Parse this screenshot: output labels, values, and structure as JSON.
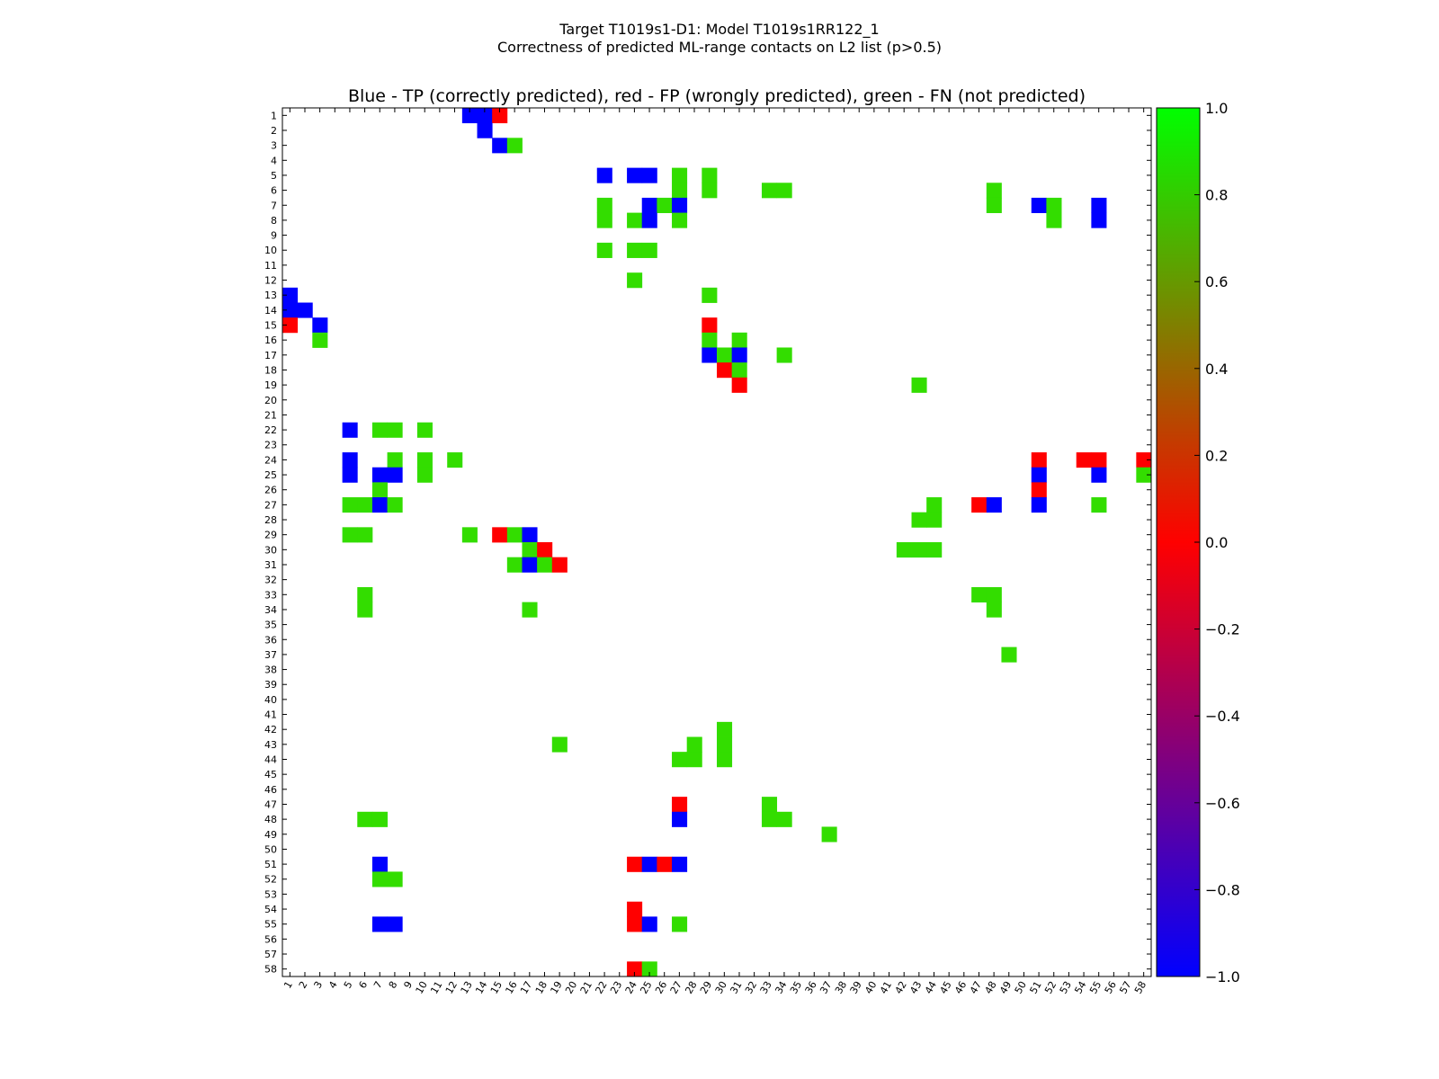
{
  "figure": {
    "suptitle_line1": "Target T1019s1-D1: Model T1019s1RR122_1",
    "suptitle_line2": "Correctness of predicted ML-range contacts on L2 list (p>0.5)"
  },
  "chart_data": {
    "type": "heatmap",
    "title": "Blue - TP (correctly predicted), red - FP (wrongly predicted), green - FN (not predicted)",
    "xlabel": "",
    "ylabel": "",
    "n": 58,
    "x_ticks": [
      1,
      2,
      3,
      4,
      5,
      6,
      7,
      8,
      9,
      10,
      11,
      12,
      13,
      14,
      15,
      16,
      17,
      18,
      19,
      20,
      21,
      22,
      23,
      24,
      25,
      26,
      27,
      28,
      29,
      30,
      31,
      32,
      33,
      34,
      35,
      36,
      37,
      38,
      39,
      40,
      41,
      42,
      43,
      44,
      45,
      46,
      47,
      48,
      49,
      50,
      51,
      52,
      53,
      54,
      55,
      56,
      57,
      58
    ],
    "y_ticks": [
      1,
      2,
      3,
      4,
      5,
      6,
      7,
      8,
      9,
      10,
      11,
      12,
      13,
      14,
      15,
      16,
      17,
      18,
      19,
      20,
      21,
      22,
      23,
      24,
      25,
      26,
      27,
      28,
      29,
      30,
      31,
      32,
      33,
      34,
      35,
      36,
      37,
      38,
      39,
      40,
      41,
      42,
      43,
      44,
      45,
      46,
      47,
      48,
      49,
      50,
      51,
      52,
      53,
      54,
      55,
      56,
      57,
      58
    ],
    "value_meaning": {
      "-1": "TP (blue)",
      "0": "FP (red)",
      "0.8": "FN (green)"
    },
    "colors": {
      "tp": "#0000ff",
      "fp": "#ff0000",
      "fn": "#33dd00"
    },
    "colorbar": {
      "range": [
        -1.0,
        1.0
      ],
      "stops": [
        "#0000ff",
        "#ff0000",
        "#00ff00"
      ],
      "ticks": [
        "1.0",
        "0.8",
        "0.6",
        "0.4",
        "0.2",
        "0.0",
        "−0.2",
        "−0.4",
        "−0.6",
        "−0.8",
        "−1.0"
      ]
    },
    "cells": [
      {
        "row": 1,
        "col": 13,
        "value": -1
      },
      {
        "row": 1,
        "col": 14,
        "value": -1
      },
      {
        "row": 1,
        "col": 15,
        "value": 0
      },
      {
        "row": 2,
        "col": 14,
        "value": -1
      },
      {
        "row": 3,
        "col": 15,
        "value": -1
      },
      {
        "row": 3,
        "col": 16,
        "value": 0.8
      },
      {
        "row": 5,
        "col": 22,
        "value": -1
      },
      {
        "row": 5,
        "col": 24,
        "value": -1
      },
      {
        "row": 5,
        "col": 25,
        "value": -1
      },
      {
        "row": 5,
        "col": 27,
        "value": 0.8
      },
      {
        "row": 5,
        "col": 29,
        "value": 0.8
      },
      {
        "row": 6,
        "col": 27,
        "value": 0.8
      },
      {
        "row": 6,
        "col": 29,
        "value": 0.8
      },
      {
        "row": 6,
        "col": 33,
        "value": 0.8
      },
      {
        "row": 6,
        "col": 34,
        "value": 0.8
      },
      {
        "row": 6,
        "col": 48,
        "value": 0.8
      },
      {
        "row": 7,
        "col": 22,
        "value": 0.8
      },
      {
        "row": 7,
        "col": 25,
        "value": -1
      },
      {
        "row": 7,
        "col": 26,
        "value": 0.8
      },
      {
        "row": 7,
        "col": 27,
        "value": -1
      },
      {
        "row": 7,
        "col": 48,
        "value": 0.8
      },
      {
        "row": 7,
        "col": 51,
        "value": -1
      },
      {
        "row": 7,
        "col": 52,
        "value": 0.8
      },
      {
        "row": 7,
        "col": 55,
        "value": -1
      },
      {
        "row": 8,
        "col": 22,
        "value": 0.8
      },
      {
        "row": 8,
        "col": 24,
        "value": 0.8
      },
      {
        "row": 8,
        "col": 25,
        "value": -1
      },
      {
        "row": 8,
        "col": 27,
        "value": 0.8
      },
      {
        "row": 8,
        "col": 52,
        "value": 0.8
      },
      {
        "row": 8,
        "col": 55,
        "value": -1
      },
      {
        "row": 10,
        "col": 22,
        "value": 0.8
      },
      {
        "row": 10,
        "col": 24,
        "value": 0.8
      },
      {
        "row": 10,
        "col": 25,
        "value": 0.8
      },
      {
        "row": 12,
        "col": 24,
        "value": 0.8
      },
      {
        "row": 13,
        "col": 1,
        "value": -1
      },
      {
        "row": 13,
        "col": 29,
        "value": 0.8
      },
      {
        "row": 14,
        "col": 1,
        "value": -1
      },
      {
        "row": 14,
        "col": 2,
        "value": -1
      },
      {
        "row": 15,
        "col": 1,
        "value": 0
      },
      {
        "row": 15,
        "col": 3,
        "value": -1
      },
      {
        "row": 15,
        "col": 29,
        "value": 0
      },
      {
        "row": 16,
        "col": 3,
        "value": 0.8
      },
      {
        "row": 16,
        "col": 29,
        "value": 0.8
      },
      {
        "row": 16,
        "col": 31,
        "value": 0.8
      },
      {
        "row": 17,
        "col": 29,
        "value": -1
      },
      {
        "row": 17,
        "col": 30,
        "value": 0.8
      },
      {
        "row": 17,
        "col": 31,
        "value": -1
      },
      {
        "row": 17,
        "col": 34,
        "value": 0.8
      },
      {
        "row": 18,
        "col": 30,
        "value": 0
      },
      {
        "row": 18,
        "col": 31,
        "value": 0.8
      },
      {
        "row": 19,
        "col": 31,
        "value": 0
      },
      {
        "row": 19,
        "col": 43,
        "value": 0.8
      },
      {
        "row": 22,
        "col": 5,
        "value": -1
      },
      {
        "row": 22,
        "col": 7,
        "value": 0.8
      },
      {
        "row": 22,
        "col": 8,
        "value": 0.8
      },
      {
        "row": 22,
        "col": 10,
        "value": 0.8
      },
      {
        "row": 24,
        "col": 5,
        "value": -1
      },
      {
        "row": 24,
        "col": 8,
        "value": 0.8
      },
      {
        "row": 24,
        "col": 10,
        "value": 0.8
      },
      {
        "row": 24,
        "col": 12,
        "value": 0.8
      },
      {
        "row": 24,
        "col": 51,
        "value": 0
      },
      {
        "row": 24,
        "col": 54,
        "value": 0
      },
      {
        "row": 24,
        "col": 55,
        "value": 0
      },
      {
        "row": 24,
        "col": 58,
        "value": 0
      },
      {
        "row": 25,
        "col": 5,
        "value": -1
      },
      {
        "row": 25,
        "col": 7,
        "value": -1
      },
      {
        "row": 25,
        "col": 8,
        "value": -1
      },
      {
        "row": 25,
        "col": 10,
        "value": 0.8
      },
      {
        "row": 25,
        "col": 51,
        "value": -1
      },
      {
        "row": 25,
        "col": 55,
        "value": -1
      },
      {
        "row": 25,
        "col": 58,
        "value": 0.8
      },
      {
        "row": 26,
        "col": 7,
        "value": 0.8
      },
      {
        "row": 26,
        "col": 51,
        "value": 0
      },
      {
        "row": 27,
        "col": 5,
        "value": 0.8
      },
      {
        "row": 27,
        "col": 6,
        "value": 0.8
      },
      {
        "row": 27,
        "col": 7,
        "value": -1
      },
      {
        "row": 27,
        "col": 8,
        "value": 0.8
      },
      {
        "row": 27,
        "col": 44,
        "value": 0.8
      },
      {
        "row": 27,
        "col": 47,
        "value": 0
      },
      {
        "row": 27,
        "col": 48,
        "value": -1
      },
      {
        "row": 27,
        "col": 51,
        "value": -1
      },
      {
        "row": 27,
        "col": 55,
        "value": 0.8
      },
      {
        "row": 28,
        "col": 43,
        "value": 0.8
      },
      {
        "row": 28,
        "col": 44,
        "value": 0.8
      },
      {
        "row": 29,
        "col": 5,
        "value": 0.8
      },
      {
        "row": 29,
        "col": 6,
        "value": 0.8
      },
      {
        "row": 29,
        "col": 13,
        "value": 0.8
      },
      {
        "row": 29,
        "col": 15,
        "value": 0
      },
      {
        "row": 29,
        "col": 16,
        "value": 0.8
      },
      {
        "row": 29,
        "col": 17,
        "value": -1
      },
      {
        "row": 30,
        "col": 17,
        "value": 0.8
      },
      {
        "row": 30,
        "col": 18,
        "value": 0
      },
      {
        "row": 30,
        "col": 42,
        "value": 0.8
      },
      {
        "row": 30,
        "col": 43,
        "value": 0.8
      },
      {
        "row": 30,
        "col": 44,
        "value": 0.8
      },
      {
        "row": 31,
        "col": 16,
        "value": 0.8
      },
      {
        "row": 31,
        "col": 17,
        "value": -1
      },
      {
        "row": 31,
        "col": 18,
        "value": 0.8
      },
      {
        "row": 31,
        "col": 19,
        "value": 0
      },
      {
        "row": 33,
        "col": 6,
        "value": 0.8
      },
      {
        "row": 33,
        "col": 47,
        "value": 0.8
      },
      {
        "row": 33,
        "col": 48,
        "value": 0.8
      },
      {
        "row": 34,
        "col": 6,
        "value": 0.8
      },
      {
        "row": 34,
        "col": 17,
        "value": 0.8
      },
      {
        "row": 34,
        "col": 48,
        "value": 0.8
      },
      {
        "row": 37,
        "col": 49,
        "value": 0.8
      },
      {
        "row": 42,
        "col": 30,
        "value": 0.8
      },
      {
        "row": 43,
        "col": 19,
        "value": 0.8
      },
      {
        "row": 43,
        "col": 28,
        "value": 0.8
      },
      {
        "row": 43,
        "col": 30,
        "value": 0.8
      },
      {
        "row": 44,
        "col": 27,
        "value": 0.8
      },
      {
        "row": 44,
        "col": 28,
        "value": 0.8
      },
      {
        "row": 44,
        "col": 30,
        "value": 0.8
      },
      {
        "row": 47,
        "col": 27,
        "value": 0
      },
      {
        "row": 47,
        "col": 33,
        "value": 0.8
      },
      {
        "row": 48,
        "col": 6,
        "value": 0.8
      },
      {
        "row": 48,
        "col": 7,
        "value": 0.8
      },
      {
        "row": 48,
        "col": 27,
        "value": -1
      },
      {
        "row": 48,
        "col": 33,
        "value": 0.8
      },
      {
        "row": 48,
        "col": 34,
        "value": 0.8
      },
      {
        "row": 49,
        "col": 37,
        "value": 0.8
      },
      {
        "row": 51,
        "col": 7,
        "value": -1
      },
      {
        "row": 51,
        "col": 24,
        "value": 0
      },
      {
        "row": 51,
        "col": 25,
        "value": -1
      },
      {
        "row": 51,
        "col": 26,
        "value": 0
      },
      {
        "row": 51,
        "col": 27,
        "value": -1
      },
      {
        "row": 52,
        "col": 7,
        "value": 0.8
      },
      {
        "row": 52,
        "col": 8,
        "value": 0.8
      },
      {
        "row": 54,
        "col": 24,
        "value": 0
      },
      {
        "row": 55,
        "col": 7,
        "value": -1
      },
      {
        "row": 55,
        "col": 8,
        "value": -1
      },
      {
        "row": 55,
        "col": 24,
        "value": 0
      },
      {
        "row": 55,
        "col": 25,
        "value": -1
      },
      {
        "row": 55,
        "col": 27,
        "value": 0.8
      },
      {
        "row": 58,
        "col": 24,
        "value": 0
      },
      {
        "row": 58,
        "col": 25,
        "value": 0.8
      }
    ]
  }
}
